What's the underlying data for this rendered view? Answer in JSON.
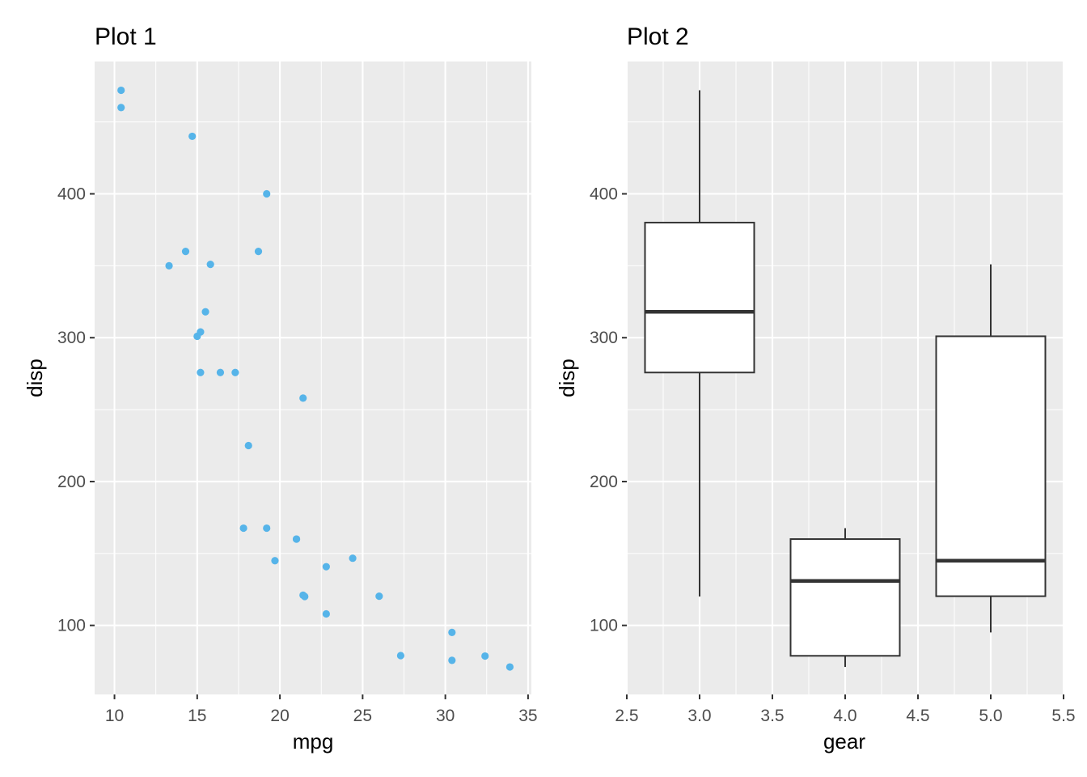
{
  "point_color": "#56B4E9",
  "chart_data": [
    {
      "type": "scatter",
      "title": "Plot 1",
      "xlabel": "mpg",
      "ylabel": "disp",
      "xlim": [
        8.8,
        35.2
      ],
      "ylim": [
        52.0,
        492.0
      ],
      "x_ticks": [
        10,
        15,
        20,
        25,
        30,
        35
      ],
      "y_ticks": [
        100,
        200,
        300,
        400
      ],
      "grid": true,
      "points": [
        {
          "x": 21.0,
          "y": 160.0
        },
        {
          "x": 21.0,
          "y": 160.0
        },
        {
          "x": 22.8,
          "y": 108.0
        },
        {
          "x": 21.4,
          "y": 258.0
        },
        {
          "x": 18.7,
          "y": 360.0
        },
        {
          "x": 18.1,
          "y": 225.0
        },
        {
          "x": 14.3,
          "y": 360.0
        },
        {
          "x": 24.4,
          "y": 146.7
        },
        {
          "x": 22.8,
          "y": 140.8
        },
        {
          "x": 19.2,
          "y": 167.6
        },
        {
          "x": 17.8,
          "y": 167.6
        },
        {
          "x": 16.4,
          "y": 275.8
        },
        {
          "x": 17.3,
          "y": 275.8
        },
        {
          "x": 15.2,
          "y": 275.8
        },
        {
          "x": 10.4,
          "y": 472.0
        },
        {
          "x": 10.4,
          "y": 460.0
        },
        {
          "x": 14.7,
          "y": 440.0
        },
        {
          "x": 32.4,
          "y": 78.7
        },
        {
          "x": 30.4,
          "y": 75.7
        },
        {
          "x": 33.9,
          "y": 71.1
        },
        {
          "x": 21.5,
          "y": 120.1
        },
        {
          "x": 15.5,
          "y": 318.0
        },
        {
          "x": 15.2,
          "y": 304.0
        },
        {
          "x": 13.3,
          "y": 350.0
        },
        {
          "x": 19.2,
          "y": 400.0
        },
        {
          "x": 27.3,
          "y": 79.0
        },
        {
          "x": 26.0,
          "y": 120.3
        },
        {
          "x": 30.4,
          "y": 95.1
        },
        {
          "x": 15.8,
          "y": 351.0
        },
        {
          "x": 19.7,
          "y": 145.0
        },
        {
          "x": 15.0,
          "y": 301.0
        },
        {
          "x": 21.4,
          "y": 121.0
        }
      ]
    },
    {
      "type": "box",
      "title": "Plot 2",
      "xlabel": "gear",
      "ylabel": "disp",
      "xlim": [
        2.5,
        5.5
      ],
      "ylim": [
        52.0,
        492.0
      ],
      "x_ticks": [
        2.5,
        3.0,
        3.5,
        4.0,
        4.5,
        5.0,
        5.5
      ],
      "x_tick_labels": [
        "2.5",
        "3.0",
        "3.5",
        "4.0",
        "4.5",
        "5.0",
        "5.5"
      ],
      "y_ticks": [
        100,
        200,
        300,
        400
      ],
      "grid": true,
      "box_width": 0.75,
      "boxes": [
        {
          "x": 3.0,
          "min": 120.1,
          "q1": 275.8,
          "median": 318.0,
          "q3": 380.0,
          "max": 472.0
        },
        {
          "x": 4.0,
          "min": 71.1,
          "q1": 78.85,
          "median": 130.9,
          "q3": 160.0,
          "max": 167.6
        },
        {
          "x": 5.0,
          "min": 95.1,
          "q1": 120.3,
          "median": 145.0,
          "q3": 301.0,
          "max": 351.0
        }
      ]
    }
  ]
}
